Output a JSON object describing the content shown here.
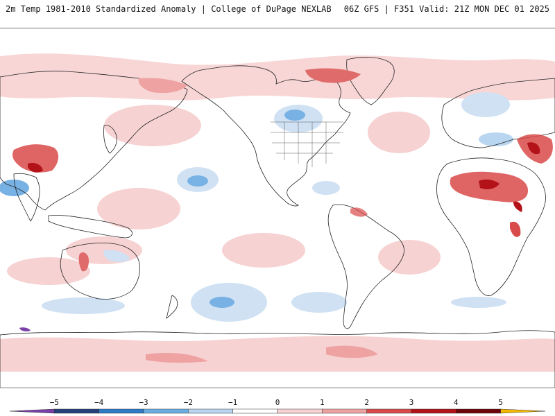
{
  "header": {
    "left_title": "2m Temp 1981-2010 Standardized Anomaly | College of DuPage NEXLAB",
    "right_title": "06Z GFS | F351 Valid: 21Z MON DEC 01 2025"
  },
  "colorbar": {
    "labels": [
      "-5",
      "-4",
      "-3",
      "-2",
      "-1",
      "0",
      "1",
      "2",
      "3",
      "4",
      "5"
    ],
    "colors": [
      "#7a3fa8",
      "#25407a",
      "#2e7cc8",
      "#6aaee3",
      "#b9d6f0",
      "#ffffff",
      "#f7d2d2",
      "#eea2a2",
      "#d94a4a",
      "#b31218",
      "#6e0408",
      "#f5b800"
    ]
  },
  "map": {
    "land_color": "#f6dcdc",
    "continent_outline": "#222222",
    "warm_strong": "#c41e22",
    "warm_mid": "#e06b6b",
    "warm_light": "#f4c3c3",
    "cool_light": "#cfe1f3",
    "cool_mid": "#78b1e4",
    "cool_strong": "#2b79c6"
  }
}
